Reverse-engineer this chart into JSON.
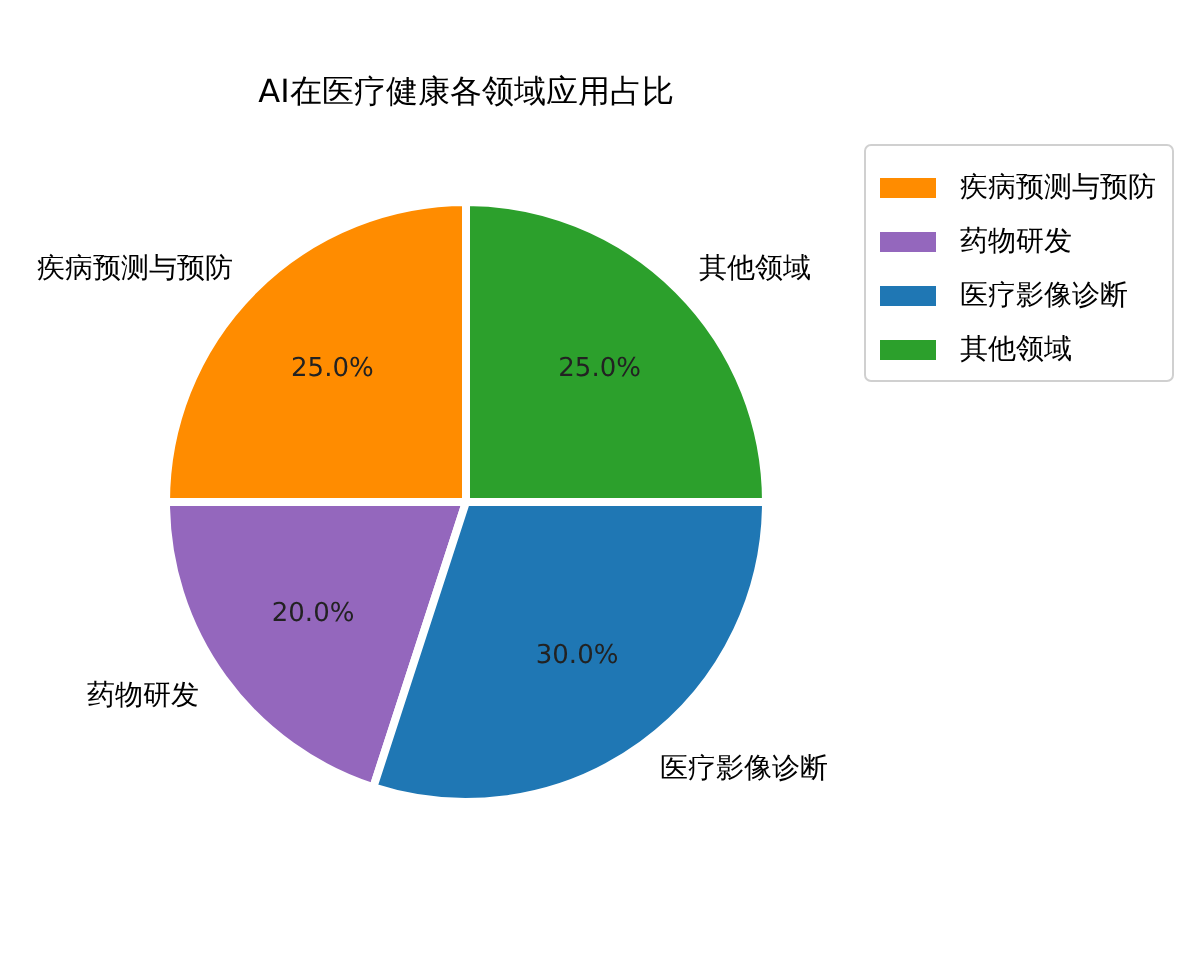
{
  "chart_data": {
    "type": "pie",
    "title": "AI在医疗健康各领域应用占比",
    "categories": [
      "疾病预测与预防",
      "药物研发",
      "医疗影像诊断",
      "其他领域"
    ],
    "values": [
      25,
      20,
      30,
      25
    ],
    "colors": [
      "#ff8c00",
      "#9467bd",
      "#1f77b4",
      "#2ca02c"
    ],
    "value_labels": [
      "25.0%",
      "20.0%",
      "30.0%",
      "25.0%"
    ],
    "legend": "top right"
  }
}
